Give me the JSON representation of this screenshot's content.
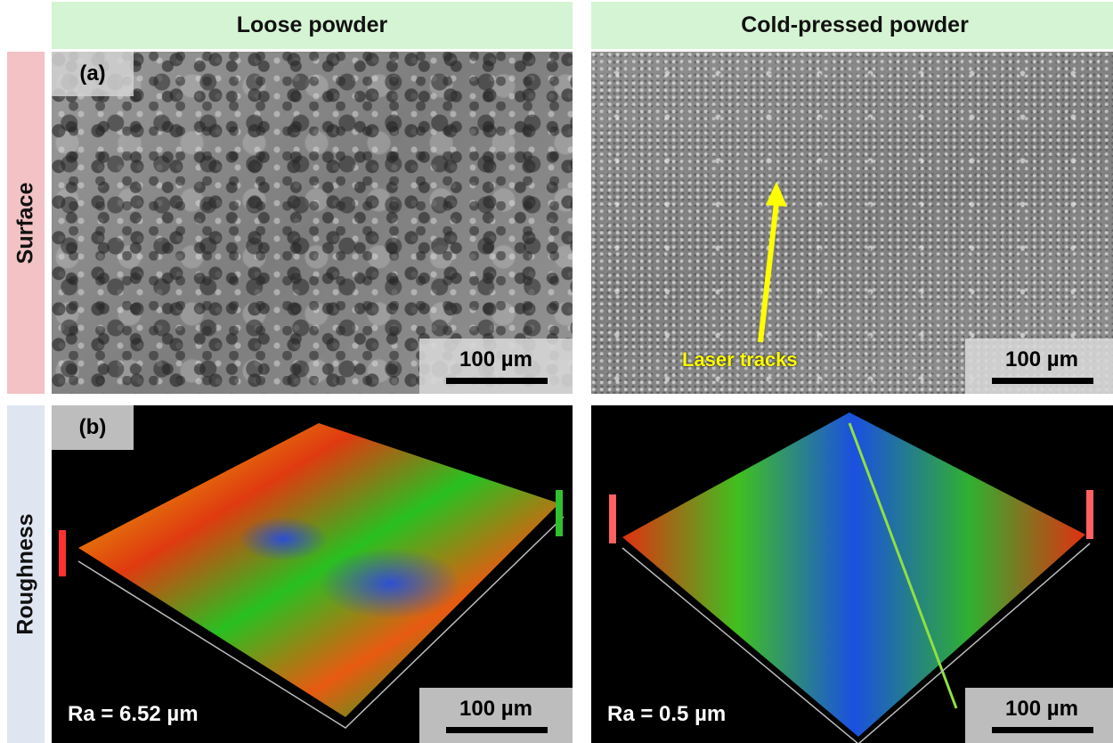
{
  "columns": [
    {
      "header": "Loose powder"
    },
    {
      "header": "Cold-pressed powder"
    }
  ],
  "rows": [
    {
      "header": "Surface",
      "color": "#f2c2c4"
    },
    {
      "header": "Roughness",
      "color": "#dfe6f2"
    }
  ],
  "panels": {
    "surface_loose": {
      "label": "(a)",
      "scale": "100 µm"
    },
    "surface_cold": {
      "annotation": "Laser tracks",
      "annotation_color": "#ffff00",
      "scale": "100 µm"
    },
    "rough_loose": {
      "label": "(b)",
      "ra": "Ra = 6.52 µm",
      "scale": "100 µm"
    },
    "rough_cold": {
      "ra": "Ra = 0.5 µm",
      "scale": "100 µm"
    }
  },
  "header_color": "#d5f4d3"
}
